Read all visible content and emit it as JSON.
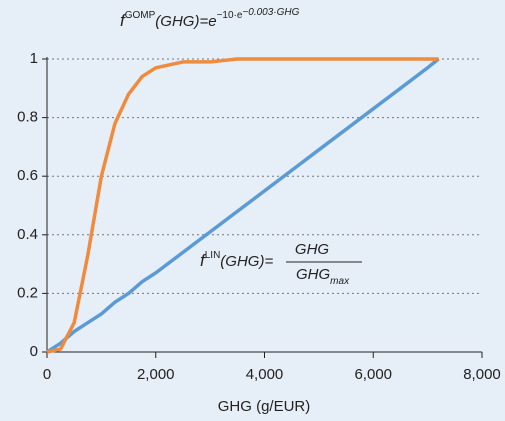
{
  "chart_data": {
    "type": "line",
    "x_label": "GHG (g/EUR)",
    "x": [
      0,
      250,
      500,
      750,
      1000,
      1250,
      1500,
      1750,
      2000,
      2500,
      3000,
      3500,
      4000,
      4500,
      5000,
      5500,
      6000,
      6500,
      7000,
      7200
    ],
    "series": [
      {
        "name": "GOMP",
        "color": "#f08a3c",
        "values": [
          0,
          0.01,
          0.1,
          0.33,
          0.6,
          0.78,
          0.88,
          0.94,
          0.97,
          0.99,
          0.99,
          1,
          1,
          1,
          1,
          1,
          1,
          1,
          1,
          1
        ]
      },
      {
        "name": "LIN",
        "color": "#5b9bd5",
        "values": [
          0,
          0.03,
          0.07,
          0.1,
          0.13,
          0.17,
          0.2,
          0.24,
          0.27,
          0.34,
          0.41,
          0.48,
          0.55,
          0.62,
          0.69,
          0.76,
          0.83,
          0.9,
          0.97,
          1
        ]
      }
    ],
    "xlim": [
      0,
      8000
    ],
    "xticks": [
      0,
      {
        "value": 2000,
        "label": "2,000"
      },
      {
        "value": 4000,
        "label": "4,000"
      },
      {
        "value": 6000,
        "label": "6,000"
      },
      {
        "value": 8000,
        "label": "8,000"
      }
    ],
    "ylim": [
      0,
      1
    ],
    "yticks": [
      0,
      0.2,
      0.4,
      0.6,
      0.8,
      1
    ],
    "grid": true,
    "annotations": {
      "gomp": [
        "f",
        "GOMP",
        "(GHG)=e",
        "−10·e",
        "−0.003·GHG"
      ],
      "lin": [
        "f",
        "LIN",
        "(GHG)=",
        "GHG",
        "GHG",
        "max"
      ]
    }
  }
}
